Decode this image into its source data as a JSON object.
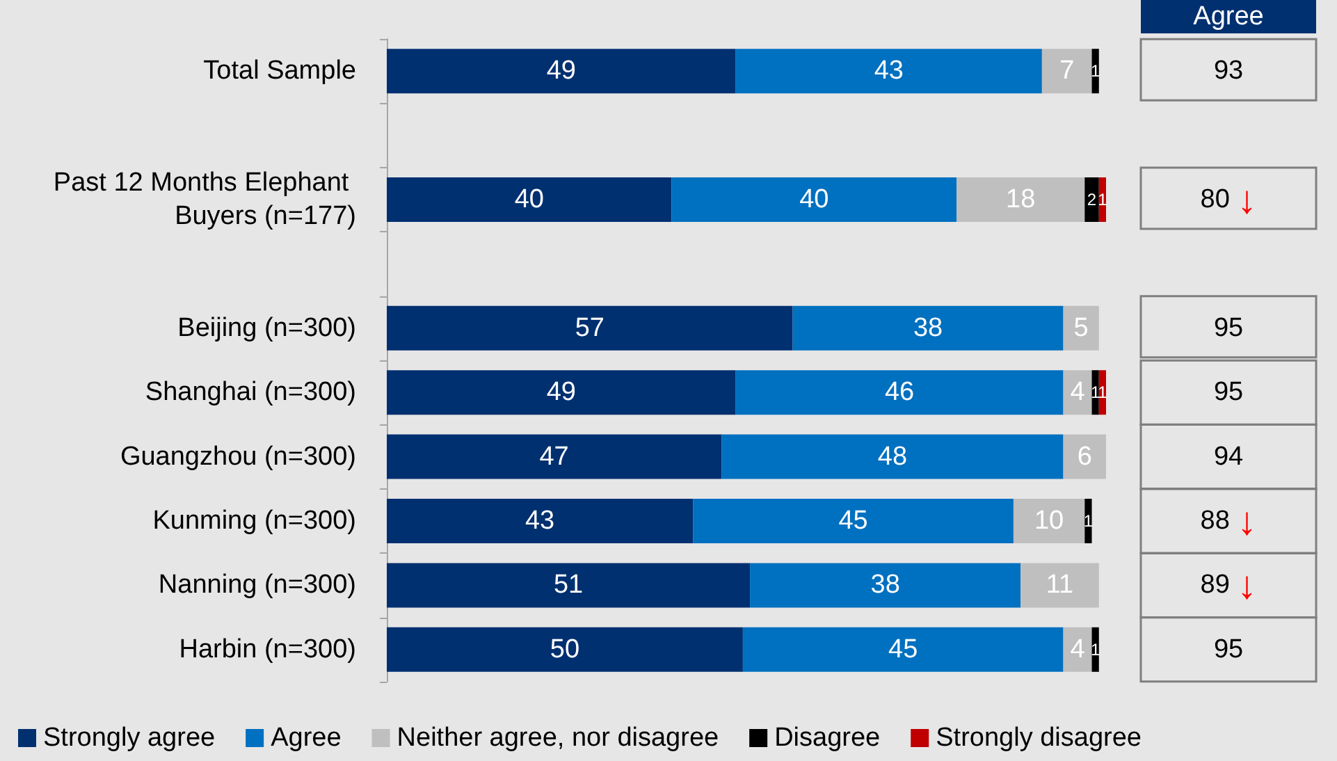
{
  "chart_data": {
    "type": "bar",
    "orientation": "horizontal",
    "stacked": true,
    "data_labels": true,
    "legend": "bottom",
    "tick_labels": "y",
    "xlim": [
      0,
      101
    ],
    "categories": [
      "Total Sample",
      null,
      "Past 12 Months Elephant Buyers (n=177)",
      null,
      "Beijing (n=300)",
      "Shanghai (n=300)",
      "Guangzhou (n=300)",
      "Kunming (n=300)",
      "Nanning (n=300)",
      "Harbin (n=300)"
    ],
    "series": [
      {
        "name": "Strongly agree",
        "color": "#003070",
        "values": [
          49,
          null,
          40,
          null,
          57,
          49,
          47,
          43,
          51,
          50
        ]
      },
      {
        "name": "Agree",
        "color": "#0070c0",
        "values": [
          43,
          null,
          40,
          null,
          38,
          46,
          48,
          45,
          38,
          45
        ]
      },
      {
        "name": "Neither agree, nor disagree",
        "color": "#bfbfbf",
        "values": [
          7,
          null,
          18,
          null,
          5,
          4,
          6,
          10,
          11,
          4
        ]
      },
      {
        "name": "Disagree",
        "color": "#000000",
        "values": [
          1,
          null,
          2,
          null,
          null,
          1,
          null,
          1,
          null,
          1
        ]
      },
      {
        "name": "Strongly disagree",
        "color": "#c00000",
        "values": [
          null,
          null,
          1,
          null,
          null,
          1,
          null,
          null,
          null,
          null
        ]
      }
    ],
    "annotations": [
      "Agree",
      "93",
      "80 ↓",
      "95",
      "95",
      "94",
      "88 ↓",
      "89 ↓",
      "95"
    ]
  }
}
